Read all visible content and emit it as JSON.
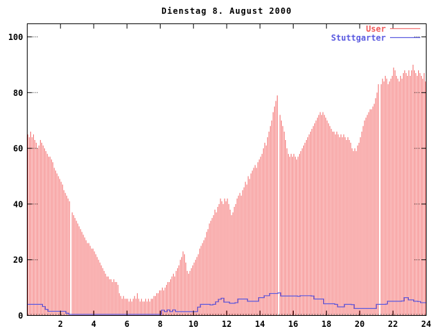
{
  "window": {
    "background": "#ffffff"
  },
  "colors": {
    "bars": "#f47272",
    "line": "#5a5ae0",
    "axis": "#000000",
    "legend_user_text": "#f05a5a",
    "legend_stuttgarter_text": "#5a5ae0"
  },
  "chart_data": {
    "type": "bar",
    "title": "Dienstag 8. August 2000",
    "xlabel": "",
    "ylabel": "",
    "xlim": [
      0,
      24
    ],
    "ylim": [
      0,
      100
    ],
    "x_ticks": [
      2,
      4,
      6,
      8,
      10,
      12,
      14,
      16,
      18,
      20,
      22,
      24
    ],
    "y_ticks": [
      0,
      20,
      40,
      60,
      80,
      100
    ],
    "grid": "off",
    "legend_position": "top-right-inside",
    "sample_interval_hours": 0.083333,
    "series": [
      {
        "name": "User",
        "style": "impulse-bars",
        "color": "#f47272",
        "values": [
          65,
          64,
          66,
          64,
          65,
          63,
          62,
          60,
          61,
          63,
          62,
          61,
          60,
          59,
          58,
          57,
          57,
          56,
          55,
          53,
          52,
          51,
          50,
          49,
          48,
          47,
          45,
          44,
          43,
          42,
          41,
          0,
          37,
          36,
          35,
          34,
          33,
          32,
          31,
          30,
          29,
          28,
          27,
          26,
          26,
          25,
          24,
          24,
          23,
          22,
          21,
          20,
          19,
          18,
          17,
          16,
          15,
          14,
          14,
          13,
          13,
          12,
          13,
          12,
          12,
          11,
          8,
          7,
          6,
          7,
          6,
          6,
          6,
          5,
          6,
          5,
          6,
          7,
          6,
          8,
          6,
          5,
          6,
          5,
          5,
          6,
          5,
          6,
          5,
          6,
          6,
          7,
          7,
          8,
          8,
          9,
          9,
          10,
          9,
          10,
          11,
          12,
          12,
          13,
          14,
          15,
          14,
          16,
          17,
          18,
          20,
          21,
          23,
          22,
          19,
          16,
          15,
          16,
          17,
          18,
          19,
          20,
          21,
          22,
          24,
          25,
          26,
          27,
          28,
          30,
          31,
          33,
          34,
          35,
          36,
          38,
          37,
          39,
          40,
          42,
          41,
          40,
          42,
          41,
          42,
          40,
          38,
          36,
          37,
          39,
          40,
          42,
          43,
          44,
          43,
          45,
          46,
          48,
          47,
          50,
          49,
          51,
          52,
          53,
          54,
          53,
          55,
          56,
          57,
          58,
          60,
          62,
          61,
          64,
          66,
          68,
          70,
          73,
          75,
          77,
          79,
          0,
          72,
          70,
          68,
          66,
          63,
          60,
          58,
          57,
          58,
          57,
          58,
          57,
          56,
          57,
          58,
          59,
          60,
          61,
          62,
          63,
          64,
          65,
          66,
          67,
          68,
          69,
          70,
          71,
          72,
          73,
          72,
          73,
          72,
          71,
          70,
          69,
          68,
          67,
          66,
          66,
          65,
          66,
          65,
          64,
          65,
          64,
          65,
          64,
          63,
          64,
          63,
          62,
          60,
          59,
          60,
          59,
          61,
          62,
          64,
          66,
          68,
          70,
          71,
          72,
          73,
          74,
          74,
          75,
          76,
          78,
          80,
          83,
          0,
          83,
          85,
          84,
          86,
          85,
          83,
          84,
          85,
          86,
          89,
          88,
          86,
          85,
          84,
          86,
          85,
          87,
          88,
          87,
          86,
          88,
          86,
          88,
          90,
          88,
          87,
          86,
          88,
          87,
          86,
          85,
          87,
          84
        ]
      },
      {
        "name": "Stuttgarter",
        "style": "step-line",
        "color": "#5a5ae0",
        "points": [
          [
            0,
            4
          ],
          [
            0.92,
            3.2
          ],
          [
            1.08,
            2.2
          ],
          [
            1.25,
            1.5
          ],
          [
            2.33,
            0.8
          ],
          [
            2.5,
            0.4
          ],
          [
            8.0,
            0.4
          ],
          [
            8.08,
            1.9
          ],
          [
            8.25,
            1.4
          ],
          [
            8.42,
            2.0
          ],
          [
            8.58,
            1.4
          ],
          [
            8.75,
            2.0
          ],
          [
            8.92,
            1.4
          ],
          [
            10.17,
            1.4
          ],
          [
            10.25,
            3.0
          ],
          [
            10.42,
            4.0
          ],
          [
            11.0,
            3.8
          ],
          [
            11.17,
            4.0
          ],
          [
            11.33,
            4.9
          ],
          [
            11.5,
            5.8
          ],
          [
            11.67,
            6.2
          ],
          [
            11.83,
            4.8
          ],
          [
            12.17,
            4.4
          ],
          [
            12.5,
            4.6
          ],
          [
            12.67,
            5.9
          ],
          [
            13.25,
            5.1
          ],
          [
            13.58,
            5.1
          ],
          [
            13.92,
            6.4
          ],
          [
            14.25,
            7.1
          ],
          [
            14.58,
            7.9
          ],
          [
            15.08,
            8.1
          ],
          [
            15.25,
            7.0
          ],
          [
            16.25,
            6.9
          ],
          [
            16.42,
            7.1
          ],
          [
            17.08,
            7.0
          ],
          [
            17.25,
            5.9
          ],
          [
            17.83,
            4.2
          ],
          [
            18.5,
            4.0
          ],
          [
            18.67,
            3.1
          ],
          [
            19.08,
            4.0
          ],
          [
            19.5,
            3.9
          ],
          [
            19.67,
            2.5
          ],
          [
            20.92,
            2.5
          ],
          [
            21.0,
            4.0
          ],
          [
            21.58,
            4.1
          ],
          [
            21.67,
            5.1
          ],
          [
            22.5,
            5.2
          ],
          [
            22.67,
            6.4
          ],
          [
            22.92,
            5.6
          ],
          [
            23.25,
            5.1
          ],
          [
            23.5,
            5.0
          ],
          [
            23.67,
            4.6
          ],
          [
            24,
            4.4
          ]
        ]
      }
    ]
  }
}
